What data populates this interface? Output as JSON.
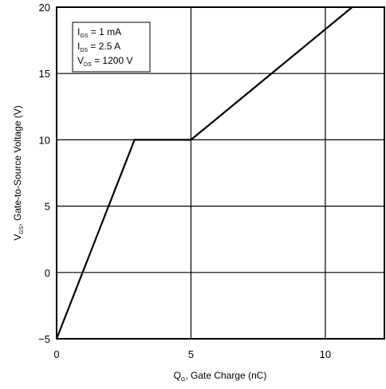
{
  "chart_data": {
    "type": "line",
    "title": "",
    "xlabel": {
      "main": "Q",
      "sub": "G",
      "rest": ", Gate Charge (nC)"
    },
    "ylabel": {
      "main": "V",
      "sub": "GS",
      "rest": ", Gate-to-Source Voltage (V)"
    },
    "xlim": [
      0,
      12.2
    ],
    "ylim": [
      -5,
      20
    ],
    "x_ticks": [
      "0",
      "5",
      "10"
    ],
    "x_tick_values": [
      0,
      5,
      10
    ],
    "y_ticks": [
      "20",
      "15",
      "10",
      "5",
      "0",
      "−5"
    ],
    "y_tick_values": [
      20,
      15,
      10,
      5,
      0,
      -5
    ],
    "grid": true,
    "legend_position": "top-left",
    "conditions": [
      {
        "main": "I",
        "sub": "GS",
        "rest": " = 1 mA"
      },
      {
        "main": "I",
        "sub": "DS",
        "rest": " = 2.5 A"
      },
      {
        "main": "V",
        "sub": "DS",
        "rest": " = 1200 V"
      }
    ],
    "series": [
      {
        "x": [
          0,
          2.9,
          5.0,
          11.0
        ],
        "y": [
          -5,
          10,
          10,
          20
        ]
      }
    ]
  }
}
